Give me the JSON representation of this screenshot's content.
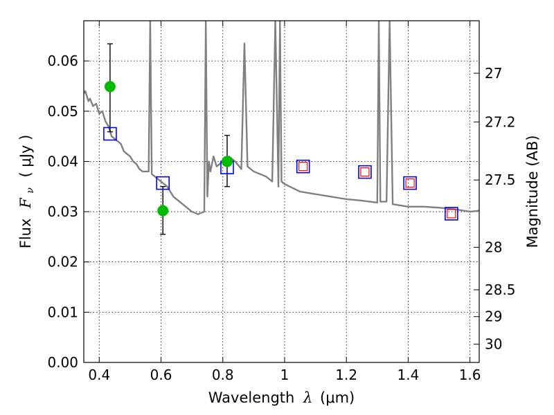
{
  "chart_data": {
    "type": "scatter",
    "xlabel": "Wavelength",
    "xlabel_symbol": "λ",
    "xlabel_unit": "(μm)",
    "ylabel": "Flux",
    "ylabel_symbol": "F",
    "ylabel_subscript": "ν",
    "ylabel_unit": "( μJy )",
    "y2label": "Magnitude (AB)",
    "xlim": [
      0.35,
      1.63
    ],
    "ylim": [
      0.0,
      0.068
    ],
    "grid": true,
    "x_ticks": [
      0.4,
      0.6,
      0.8,
      1.0,
      1.2,
      1.4,
      1.6
    ],
    "x_tick_labels": [
      "0.4",
      "0.6",
      "0.8",
      "1",
      "1.2",
      "1.4",
      "1.6"
    ],
    "y_ticks": [
      0.0,
      0.01,
      0.02,
      0.03,
      0.04,
      0.05,
      0.06
    ],
    "y_tick_labels": [
      "0.00",
      "0.01",
      "0.02",
      "0.03",
      "0.04",
      "0.05",
      "0.06"
    ],
    "y2_ticks": [
      27,
      27.2,
      27.5,
      28,
      28.5,
      29,
      30
    ],
    "y2_tick_labels": [
      "27",
      "27.2",
      "27.5",
      "28",
      "28.5",
      "29",
      "30"
    ],
    "series": [
      {
        "kind": "observed",
        "color": "#00bb00",
        "errorbar_color": "#000000",
        "x": [
          0.435,
          0.606,
          0.814
        ],
        "y": [
          0.0549,
          0.0302,
          0.04
        ],
        "yerr_low": [
          0.0459,
          0.0255,
          0.035
        ],
        "yerr_high": [
          0.0634,
          0.035,
          0.0452
        ]
      },
      {
        "kind": "model-bandpass",
        "color": "#0000ff",
        "marker": "square-open",
        "x": [
          0.435,
          0.606,
          0.814,
          1.06,
          1.26,
          1.406,
          1.54
        ],
        "y": [
          0.0455,
          0.0357,
          0.0388,
          0.039,
          0.0379,
          0.0357,
          0.0296
        ]
      },
      {
        "kind": "model-small",
        "color": "#ff0000",
        "marker": "square-open-small",
        "x": [
          1.06,
          1.26,
          1.406,
          1.54
        ],
        "y": [
          0.039,
          0.0379,
          0.0357,
          0.0296
        ]
      }
    ],
    "spectrum": {
      "color": "#808080",
      "x": [
        0.35,
        0.355,
        0.36,
        0.365,
        0.37,
        0.38,
        0.39,
        0.4,
        0.41,
        0.42,
        0.43,
        0.44,
        0.45,
        0.46,
        0.47,
        0.48,
        0.49,
        0.5,
        0.51,
        0.52,
        0.53,
        0.54,
        0.55,
        0.56,
        0.565,
        0.57,
        0.58,
        0.59,
        0.6,
        0.62,
        0.64,
        0.66,
        0.68,
        0.7,
        0.72,
        0.74,
        0.745,
        0.75,
        0.755,
        0.76,
        0.77,
        0.78,
        0.8,
        0.82,
        0.84,
        0.86,
        0.87,
        0.88,
        0.9,
        0.92,
        0.94,
        0.96,
        0.97,
        0.98,
        0.985,
        0.99,
        1.0,
        1.05,
        1.1,
        1.15,
        1.2,
        1.25,
        1.3,
        1.305,
        1.31,
        1.33,
        1.34,
        1.35,
        1.4,
        1.45,
        1.5,
        1.55,
        1.6,
        1.63
      ],
      "y": [
        0.0535,
        0.054,
        0.053,
        0.052,
        0.0525,
        0.051,
        0.0515,
        0.0495,
        0.05,
        0.048,
        0.047,
        0.045,
        0.0445,
        0.044,
        0.0435,
        0.042,
        0.0415,
        0.041,
        0.04,
        0.0395,
        0.0385,
        0.038,
        0.038,
        0.038,
        0.068,
        0.0375,
        0.037,
        0.0365,
        0.036,
        0.035,
        0.033,
        0.032,
        0.031,
        0.03,
        0.0295,
        0.03,
        0.068,
        0.033,
        0.04,
        0.038,
        0.041,
        0.039,
        0.04,
        0.041,
        0.04,
        0.0385,
        0.0635,
        0.039,
        0.038,
        0.0375,
        0.037,
        0.036,
        0.068,
        0.035,
        0.068,
        0.036,
        0.0355,
        0.034,
        0.0335,
        0.033,
        0.0325,
        0.0322,
        0.0318,
        0.068,
        0.032,
        0.032,
        0.068,
        0.0315,
        0.031,
        0.031,
        0.0308,
        0.0305,
        0.03,
        0.0302
      ]
    }
  }
}
